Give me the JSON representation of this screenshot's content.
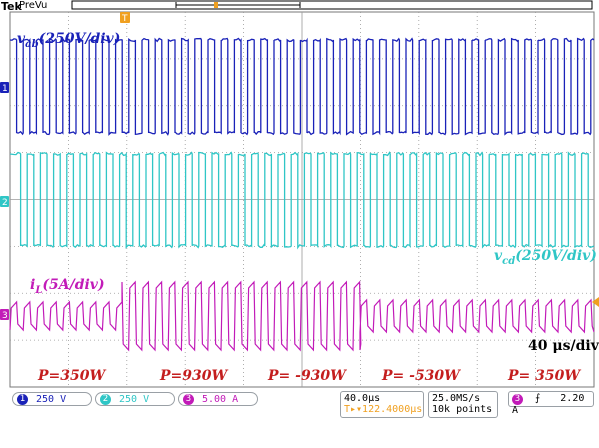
{
  "topbar": {
    "brand": "Tek",
    "mode": "PreVu"
  },
  "colors": {
    "ch1": "#1a22b8",
    "ch2": "#2fc6c6",
    "ch3": "#c21bb8",
    "power": "#c41e1e",
    "trigger": "#f0a020"
  },
  "labels": {
    "vab_main": "v",
    "vab_sub": "ab",
    "vab_scale": "(250V/div)",
    "vcd_main": "v",
    "vcd_sub": "cd",
    "vcd_scale": "(250V/div)",
    "il_main": "i",
    "il_sub": "L",
    "il_scale": "(5A/div)",
    "timebase": "40 μs/div"
  },
  "power_labels": [
    "P=350W",
    "P=930W",
    "P= -930W",
    "P= -530W",
    "P= 350W"
  ],
  "markers": {
    "ch1": "1",
    "ch2": "2",
    "ch3": "3",
    "trigger": "T"
  },
  "status": {
    "ch1": {
      "num": "1",
      "value": "250 V"
    },
    "ch2": {
      "num": "2",
      "value": "250 V"
    },
    "ch3": {
      "num": "3",
      "value": "5.00 A"
    },
    "horizontal": "40.0μs",
    "trigger_pos": "T▸▾122.4000μs",
    "sample_rate": "25.0MS/s",
    "record": "10k points",
    "trig_channel": "3",
    "trig_slope": "⨍",
    "trig_level": "2.20 A"
  }
}
